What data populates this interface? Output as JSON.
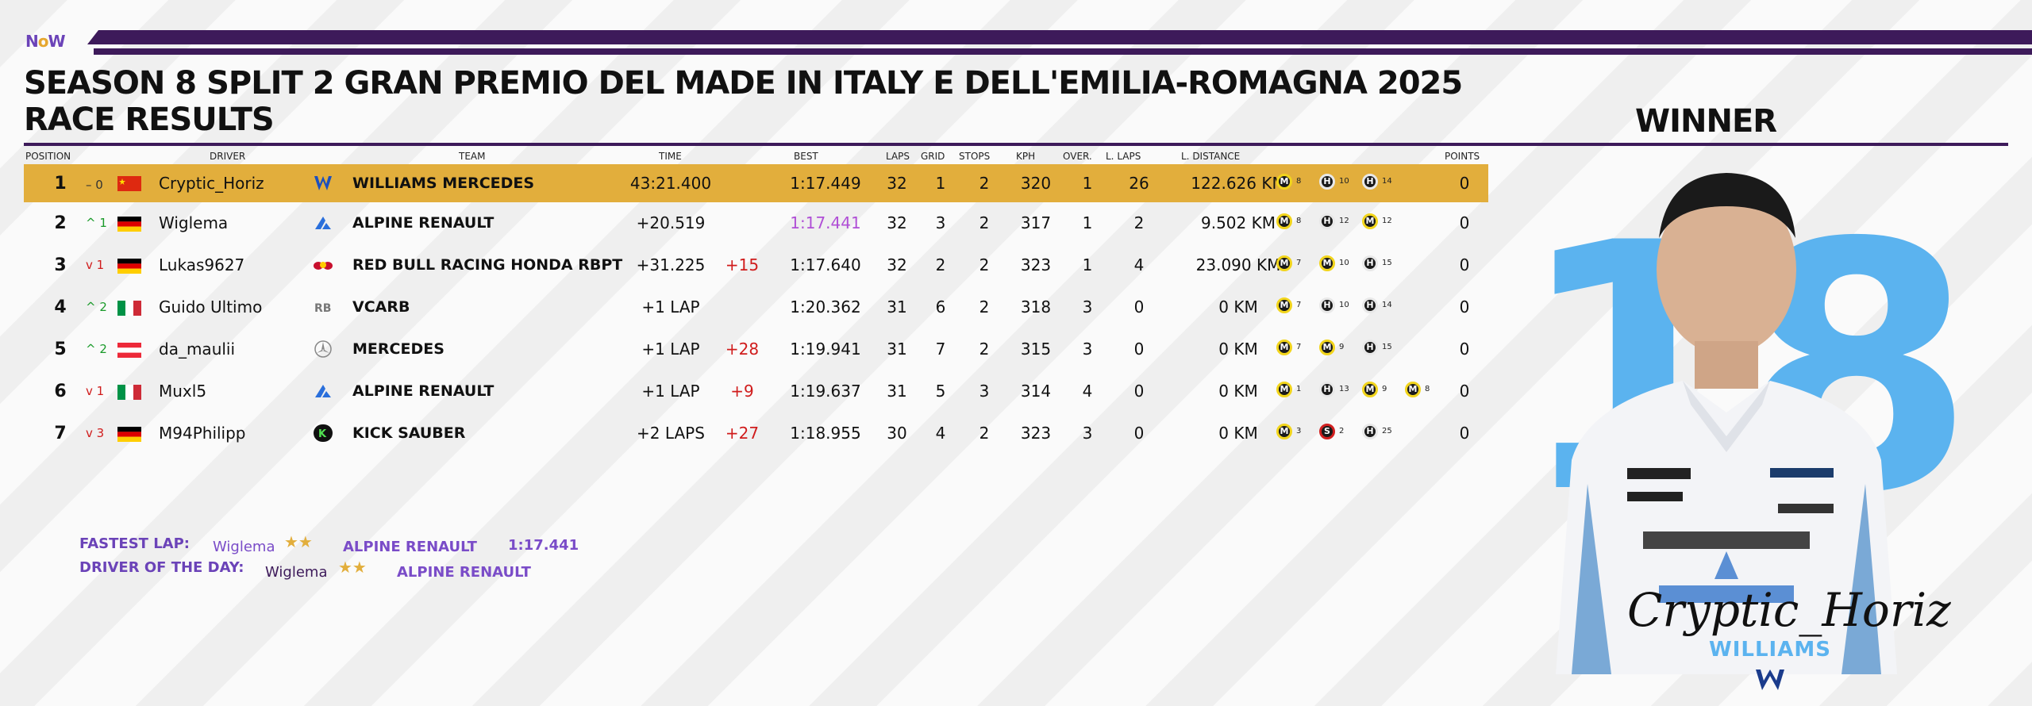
{
  "logo": {
    "text_a": "N",
    "text_o": "o",
    "text_b": "W"
  },
  "title": {
    "line1": "SEASON 8 SPLIT 2 GRAN PREMIO DEL MADE IN ITALY E DELL'EMILIA-ROMAGNA 2025",
    "line2": "RACE RESULTS"
  },
  "winner_label": "WINNER",
  "headers": {
    "position": "POSITION",
    "driver": "DRIVER",
    "team": "TEAM",
    "time": "TIME",
    "best": "BEST",
    "laps": "LAPS",
    "grid": "GRID",
    "stops": "STOPS",
    "kph": "KPH",
    "over": "OVER.",
    "llaps": "L. LAPS",
    "ldist": "L. DISTANCE",
    "points": "POINTS"
  },
  "colors": {
    "winner_row": "#e2ae3c",
    "purple": "#b04fd6",
    "accent": "#3d1a5a",
    "williams_blue": "#5bb3ef"
  },
  "rows": [
    {
      "pos": "1",
      "chg": "– 0",
      "chg_dir": "flat",
      "flag": "china",
      "driver": "Cryptic_Horiz",
      "team_icon": "williams-logo-icon",
      "team": "WILLIAMS MERCEDES",
      "time": "43:21.400",
      "pen": "",
      "best": "1:17.449",
      "best_purple": false,
      "laps": "32",
      "grid": "1",
      "stops": "2",
      "kph": "320",
      "over": "1",
      "llaps": "26",
      "ldist": "122.626 KM",
      "points": "0",
      "tyres": [
        {
          "c": "M",
          "l": "8"
        },
        {
          "c": "H",
          "l": "10"
        },
        {
          "c": "H",
          "l": "14"
        }
      ]
    },
    {
      "pos": "2",
      "chg": "^ 1",
      "chg_dir": "up",
      "flag": "germany",
      "driver": "Wiglema",
      "team_icon": "alpine-logo-icon",
      "team": "ALPINE RENAULT",
      "time": "+20.519",
      "pen": "",
      "best": "1:17.441",
      "best_purple": true,
      "laps": "32",
      "grid": "3",
      "stops": "2",
      "kph": "317",
      "over": "1",
      "llaps": "2",
      "ldist": "9.502 KM",
      "points": "0",
      "tyres": [
        {
          "c": "M",
          "l": "8"
        },
        {
          "c": "H",
          "l": "12"
        },
        {
          "c": "M",
          "l": "12"
        }
      ]
    },
    {
      "pos": "3",
      "chg": "v 1",
      "chg_dir": "down",
      "flag": "germany",
      "driver": "Lukas9627",
      "team_icon": "redbull-logo-icon",
      "team": "RED BULL RACING HONDA RBPT",
      "time": "+31.225",
      "pen": "+15",
      "best": "1:17.640",
      "best_purple": false,
      "laps": "32",
      "grid": "2",
      "stops": "2",
      "kph": "323",
      "over": "1",
      "llaps": "4",
      "ldist": "23.090 KM",
      "points": "0",
      "tyres": [
        {
          "c": "M",
          "l": "7"
        },
        {
          "c": "M",
          "l": "10"
        },
        {
          "c": "H",
          "l": "15"
        }
      ]
    },
    {
      "pos": "4",
      "chg": "^ 2",
      "chg_dir": "up",
      "flag": "italy",
      "driver": "Guido Ultimo",
      "team_icon": "vcarb-logo-icon",
      "team": "VCARB",
      "time": "+1 LAP",
      "pen": "",
      "best": "1:20.362",
      "best_purple": false,
      "laps": "31",
      "grid": "6",
      "stops": "2",
      "kph": "318",
      "over": "3",
      "llaps": "0",
      "ldist": "0 KM",
      "points": "0",
      "tyres": [
        {
          "c": "M",
          "l": "7"
        },
        {
          "c": "H",
          "l": "10"
        },
        {
          "c": "H",
          "l": "14"
        }
      ]
    },
    {
      "pos": "5",
      "chg": "^ 2",
      "chg_dir": "up",
      "flag": "austria",
      "driver": "da_maulii",
      "team_icon": "mercedes-logo-icon",
      "team": "MERCEDES",
      "time": "+1 LAP",
      "pen": "+28",
      "best": "1:19.941",
      "best_purple": false,
      "laps": "31",
      "grid": "7",
      "stops": "2",
      "kph": "315",
      "over": "3",
      "llaps": "0",
      "ldist": "0 KM",
      "points": "0",
      "tyres": [
        {
          "c": "M",
          "l": "7"
        },
        {
          "c": "M",
          "l": "9"
        },
        {
          "c": "H",
          "l": "15"
        }
      ]
    },
    {
      "pos": "6",
      "chg": "v 1",
      "chg_dir": "down",
      "flag": "italy",
      "driver": "Muxl5",
      "team_icon": "alpine-logo-icon",
      "team": "ALPINE RENAULT",
      "time": "+1 LAP",
      "pen": "+9",
      "best": "1:19.637",
      "best_purple": false,
      "laps": "31",
      "grid": "5",
      "stops": "3",
      "kph": "314",
      "over": "4",
      "llaps": "0",
      "ldist": "0 KM",
      "points": "0",
      "tyres": [
        {
          "c": "M",
          "l": "1"
        },
        {
          "c": "H",
          "l": "13"
        },
        {
          "c": "M",
          "l": "9"
        },
        {
          "c": "M",
          "l": "8"
        }
      ]
    },
    {
      "pos": "7",
      "chg": "v 3",
      "chg_dir": "down",
      "flag": "germany",
      "driver": "M94Philipp",
      "team_icon": "sauber-logo-icon",
      "team": "KICK SAUBER",
      "time": "+2 LAPS",
      "pen": "+27",
      "best": "1:18.955",
      "best_purple": false,
      "laps": "30",
      "grid": "4",
      "stops": "2",
      "kph": "323",
      "over": "3",
      "llaps": "0",
      "ldist": "0 KM",
      "points": "0",
      "tyres": [
        {
          "c": "M",
          "l": "3"
        },
        {
          "c": "S",
          "l": "2"
        },
        {
          "c": "H",
          "l": "25"
        }
      ]
    }
  ],
  "fastest_lap": {
    "label": "FASTEST LAP:",
    "driver": "Wiglema",
    "team": "ALPINE RENAULT",
    "time": "1:17.441"
  },
  "driver_of_day": {
    "label": "DRIVER OF THE DAY:",
    "driver": "Wiglema",
    "team": "ALPINE RENAULT"
  },
  "winner": {
    "number": "18",
    "name": "Cryptic_Horiz",
    "team": "WILLIAMS"
  }
}
